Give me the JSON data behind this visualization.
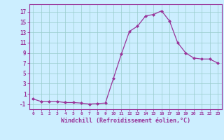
{
  "x": [
    0,
    1,
    2,
    3,
    4,
    5,
    6,
    7,
    8,
    9,
    10,
    11,
    12,
    13,
    14,
    15,
    16,
    17,
    18,
    19,
    20,
    21,
    22,
    23
  ],
  "y": [
    0.0,
    -0.5,
    -0.5,
    -0.5,
    -0.7,
    -0.7,
    -0.8,
    -1.0,
    -0.9,
    -0.8,
    4.0,
    8.8,
    13.2,
    14.2,
    16.2,
    16.5,
    17.2,
    15.2,
    11.0,
    9.0,
    8.0,
    7.8,
    7.8,
    7.0
  ],
  "line_color": "#993399",
  "marker": "D",
  "marker_size": 2.0,
  "bg_color": "#cceeff",
  "grid_color": "#99cccc",
  "axis_color": "#993399",
  "tick_color": "#993399",
  "xlabel": "Windchill (Refroidissement éolien,°C)",
  "xlabel_fontsize": 6.0,
  "ytick_labels": [
    "-1",
    "1",
    "3",
    "5",
    "7",
    "9",
    "11",
    "13",
    "15",
    "17"
  ],
  "ytick_values": [
    -1,
    1,
    3,
    5,
    7,
    9,
    11,
    13,
    15,
    17
  ],
  "ylim": [
    -2.0,
    18.5
  ],
  "xlim": [
    -0.5,
    23.5
  ]
}
